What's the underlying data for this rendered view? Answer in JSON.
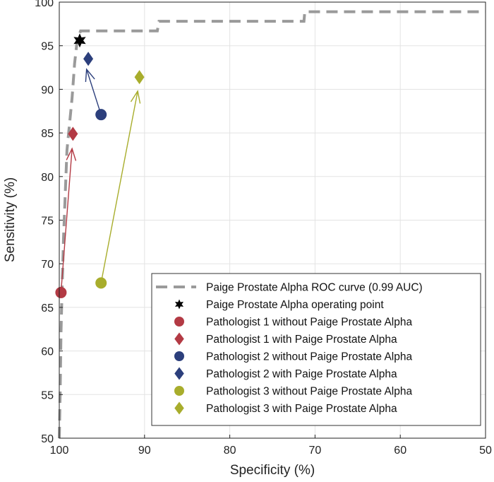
{
  "chart_data": {
    "type": "scatter",
    "title": "",
    "xlabel": "Specificity (%)",
    "ylabel": "Sensitivity (%)",
    "xlim": [
      100,
      50
    ],
    "ylim": [
      50,
      100
    ],
    "x_reversed": true,
    "grid": true,
    "legend_position": "bottom-right",
    "x_ticks": [
      "100",
      "90",
      "80",
      "70",
      "60",
      "50"
    ],
    "y_ticks": [
      "50",
      "55",
      "60",
      "65",
      "70",
      "75",
      "80",
      "85",
      "90",
      "95",
      "100"
    ],
    "roc_curve": {
      "name": "Paige Prostate Alpha ROC curve (0.99 AUC)",
      "style": "dashed",
      "color": "#9a9a9a",
      "points": [
        [
          100,
          50
        ],
        [
          99.9,
          55
        ],
        [
          99.8,
          62
        ],
        [
          99.7,
          66
        ],
        [
          99.5,
          73
        ],
        [
          99.3,
          78
        ],
        [
          99.1,
          83
        ],
        [
          98.8,
          86
        ],
        [
          98.5,
          89
        ],
        [
          98.2,
          93
        ],
        [
          97.9,
          95.6
        ],
        [
          97.5,
          96.7
        ],
        [
          88.5,
          96.7
        ],
        [
          88.3,
          97.8
        ],
        [
          71.3,
          97.8
        ],
        [
          71.2,
          98.9
        ],
        [
          50,
          98.9
        ]
      ]
    },
    "operating_point": {
      "name": "Paige Prostate Alpha operating point",
      "x": 97.6,
      "y": 95.6,
      "marker": "star",
      "color": "#000000"
    },
    "series": [
      {
        "name": "Pathologist 1 without Paige Prostate Alpha",
        "marker": "circle",
        "color": "#b33a44",
        "x": 99.8,
        "y": 66.7
      },
      {
        "name": "Pathologist 1 with Paige Prostate Alpha",
        "marker": "diamond",
        "color": "#b33a44",
        "x": 98.4,
        "y": 84.9
      },
      {
        "name": "Pathologist 2 without Paige Prostate Alpha",
        "marker": "circle",
        "color": "#2c3f7c",
        "x": 95.1,
        "y": 87.1
      },
      {
        "name": "Pathologist 2 with Paige Prostate Alpha",
        "marker": "diamond",
        "color": "#2c3f7c",
        "x": 96.6,
        "y": 93.5
      },
      {
        "name": "Pathologist 3 without Paige Prostate Alpha",
        "marker": "circle",
        "color": "#a8ad2c",
        "x": 95.1,
        "y": 67.8
      },
      {
        "name": "Pathologist 3 with Paige Prostate Alpha",
        "marker": "diamond",
        "color": "#a8ad2c",
        "x": 90.6,
        "y": 91.4
      }
    ],
    "arrows": [
      {
        "from": [
          99.8,
          66.7
        ],
        "to": [
          98.5,
          83.2
        ],
        "color": "#b33a44"
      },
      {
        "from": [
          95.1,
          87.1
        ],
        "to": [
          96.8,
          92.3
        ],
        "color": "#2c3f7c"
      },
      {
        "from": [
          95.1,
          67.8
        ],
        "to": [
          90.8,
          89.8
        ],
        "color": "#a8ad2c"
      }
    ]
  }
}
